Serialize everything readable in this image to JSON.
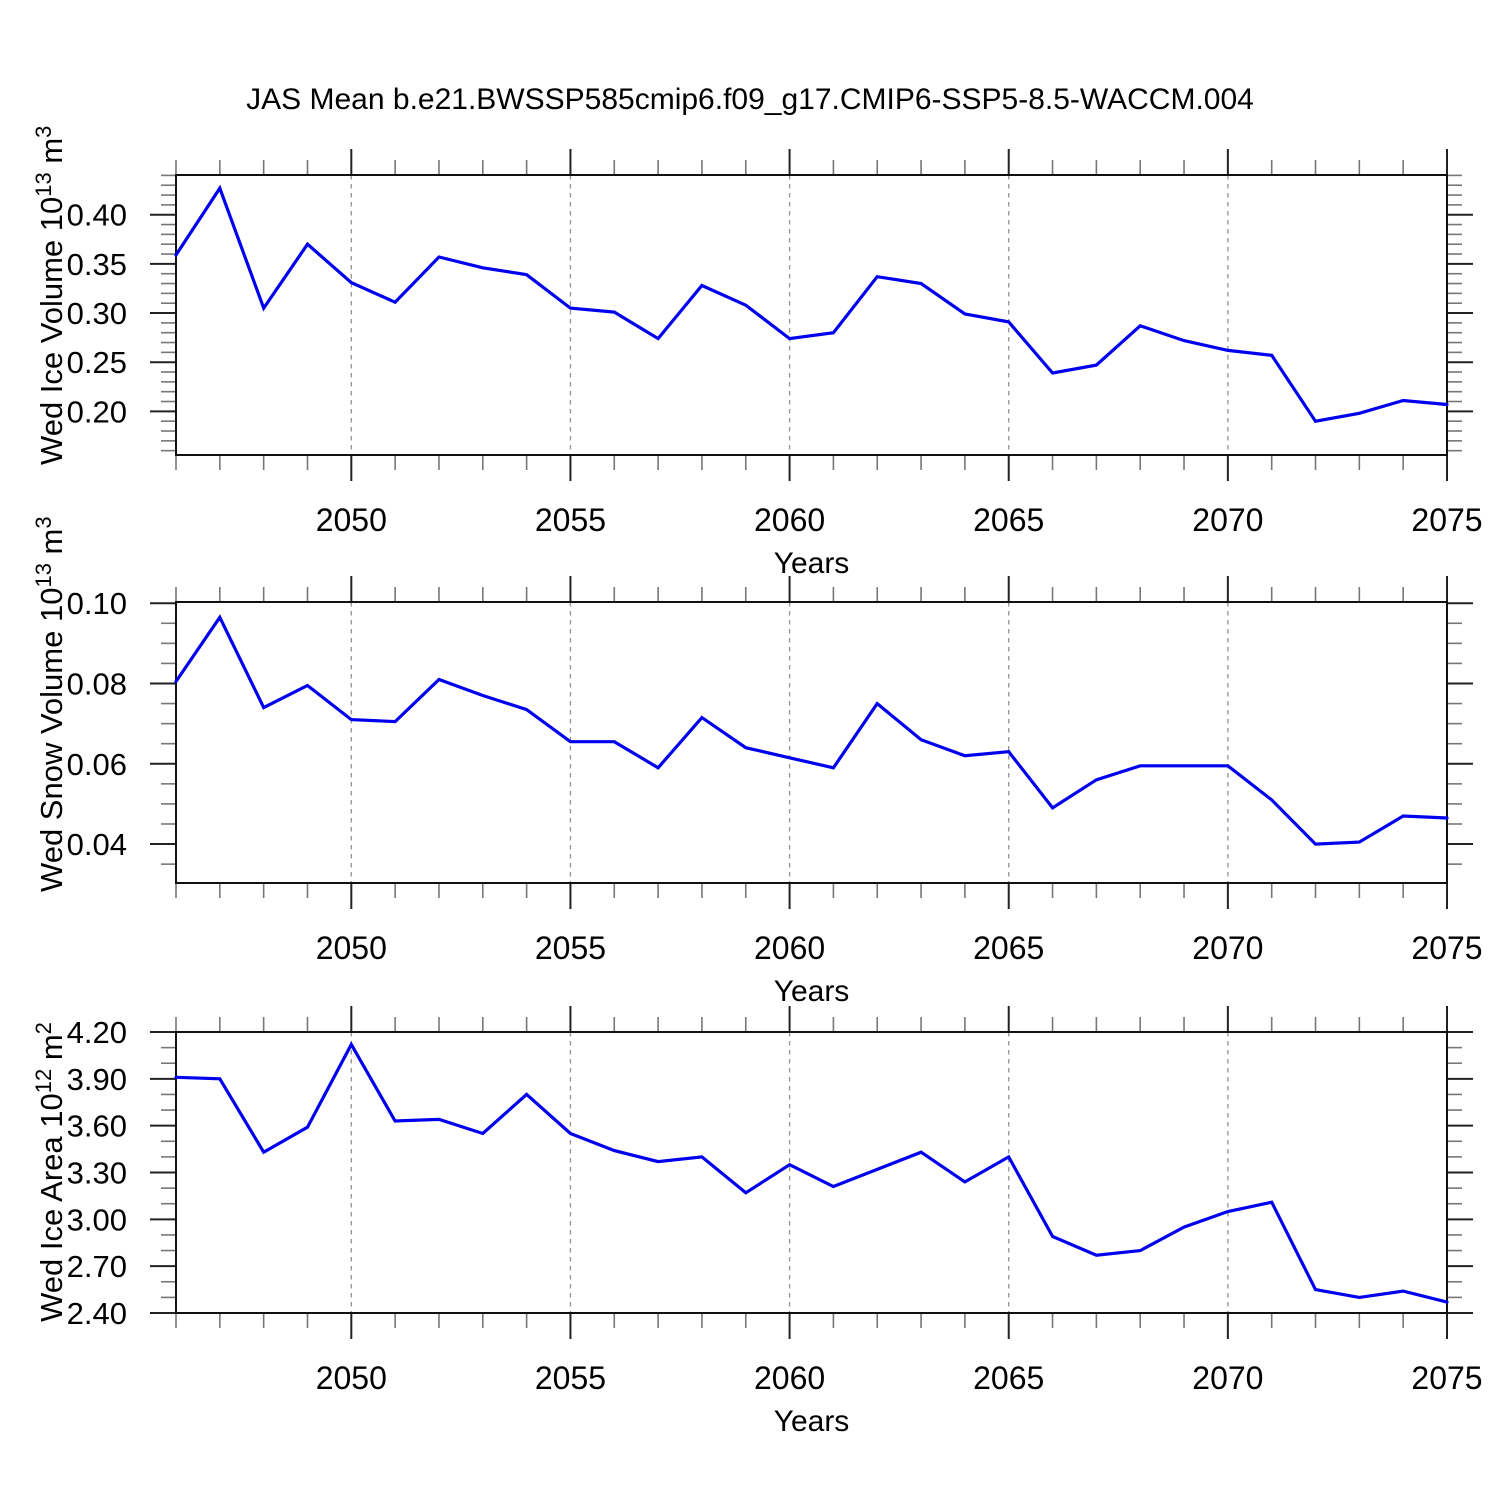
{
  "title": "JAS Mean b.e21.BWSSP585cmip6.f09_g17.CMIP6-SSP5-8.5-WACCM.004",
  "colors": {
    "line": "#0000ee",
    "grid": "#999999",
    "frame": "#111111",
    "major_tick": "#222222",
    "minor_tick": "#777777",
    "text": "#000000",
    "background": "#ffffff"
  },
  "chart_data": [
    {
      "type": "line",
      "name": "wed-ice-volume",
      "xlabel": "Years",
      "ylabel_parts": {
        "pre": "Wed Ice Volume 10",
        "exp": "13",
        "unit": " m",
        "unit_exp": "3"
      },
      "x": [
        2046,
        2047,
        2048,
        2049,
        2050,
        2051,
        2052,
        2053,
        2054,
        2055,
        2056,
        2057,
        2058,
        2059,
        2060,
        2061,
        2062,
        2063,
        2064,
        2065,
        2066,
        2067,
        2068,
        2069,
        2070,
        2071,
        2072,
        2073,
        2074,
        2075
      ],
      "values": [
        0.359,
        0.427,
        0.305,
        0.37,
        0.331,
        0.311,
        0.357,
        0.346,
        0.339,
        0.305,
        0.301,
        0.274,
        0.328,
        0.308,
        0.274,
        0.28,
        0.337,
        0.33,
        0.299,
        0.291,
        0.239,
        0.247,
        0.287,
        0.272,
        0.262,
        0.257,
        0.19,
        0.198,
        0.211,
        0.207
      ],
      "xlim": [
        2046,
        2075
      ],
      "ylim": [
        0.1556,
        0.4404
      ],
      "xticks": [
        2050,
        2055,
        2060,
        2065,
        2070,
        2075
      ],
      "xtick_labels": [
        "2050",
        "2055",
        "2060",
        "2065",
        "2070",
        "2075"
      ],
      "x_minor_step": 1,
      "yticks": [
        0.2,
        0.25,
        0.3,
        0.35,
        0.4
      ],
      "ytick_labels": [
        "0.20",
        "0.25",
        "0.30",
        "0.35",
        "0.40"
      ],
      "y_minor_step": 0.01,
      "grid": "vertical dashed at major x ticks",
      "legend": "none"
    },
    {
      "type": "line",
      "name": "wed-snow-volume",
      "xlabel": "Years",
      "ylabel_parts": {
        "pre": "Wed Snow Volume 10",
        "exp": "13",
        "unit": " m",
        "unit_exp": "3"
      },
      "x": [
        2046,
        2047,
        2048,
        2049,
        2050,
        2051,
        2052,
        2053,
        2054,
        2055,
        2056,
        2057,
        2058,
        2059,
        2060,
        2061,
        2062,
        2063,
        2064,
        2065,
        2066,
        2067,
        2068,
        2069,
        2070,
        2071,
        2072,
        2073,
        2074,
        2075
      ],
      "values": [
        0.0805,
        0.0965,
        0.074,
        0.0795,
        0.071,
        0.0705,
        0.081,
        0.077,
        0.0735,
        0.0655,
        0.0655,
        0.059,
        0.0715,
        0.064,
        0.0615,
        0.059,
        0.075,
        0.066,
        0.062,
        0.063,
        0.049,
        0.056,
        0.0595,
        0.0595,
        0.0595,
        0.051,
        0.04,
        0.0405,
        0.047,
        0.0465
      ],
      "xlim": [
        2046,
        2075
      ],
      "ylim": [
        0.0303,
        0.1003
      ],
      "xticks": [
        2050,
        2055,
        2060,
        2065,
        2070,
        2075
      ],
      "xtick_labels": [
        "2050",
        "2055",
        "2060",
        "2065",
        "2070",
        "2075"
      ],
      "x_minor_step": 1,
      "yticks": [
        0.04,
        0.06,
        0.08,
        0.1
      ],
      "ytick_labels": [
        "0.04",
        "0.06",
        "0.08",
        "0.10"
      ],
      "y_minor_step": 0.005,
      "grid": "vertical dashed at major x ticks",
      "legend": "none"
    },
    {
      "type": "line",
      "name": "wed-ice-area",
      "xlabel": "Years",
      "ylabel_parts": {
        "pre": "Wed Ice Area 10",
        "exp": "12",
        "unit": " m",
        "unit_exp": "2"
      },
      "x": [
        2046,
        2047,
        2048,
        2049,
        2050,
        2051,
        2052,
        2053,
        2054,
        2055,
        2056,
        2057,
        2058,
        2059,
        2060,
        2061,
        2062,
        2063,
        2064,
        2065,
        2066,
        2067,
        2068,
        2069,
        2070,
        2071,
        2072,
        2073,
        2074,
        2075
      ],
      "values": [
        3.91,
        3.9,
        3.43,
        3.59,
        4.12,
        3.63,
        3.64,
        3.55,
        3.8,
        3.55,
        3.44,
        3.37,
        3.4,
        3.17,
        3.35,
        3.21,
        3.32,
        3.43,
        3.24,
        3.4,
        2.89,
        2.77,
        2.8,
        2.95,
        3.05,
        3.11,
        2.55,
        2.5,
        2.54,
        2.47
      ],
      "xlim": [
        2046,
        2075
      ],
      "ylim": [
        2.4,
        4.2
      ],
      "xticks": [
        2050,
        2055,
        2060,
        2065,
        2070,
        2075
      ],
      "xtick_labels": [
        "2050",
        "2055",
        "2060",
        "2065",
        "2070",
        "2075"
      ],
      "x_minor_step": 1,
      "yticks": [
        2.4,
        2.7,
        3.0,
        3.3,
        3.6,
        3.9,
        4.2
      ],
      "ytick_labels": [
        "2.40",
        "2.70",
        "3.00",
        "3.30",
        "3.60",
        "3.90",
        "4.20"
      ],
      "y_minor_step": 0.1,
      "grid": "vertical dashed at major x ticks",
      "legend": "none"
    }
  ]
}
